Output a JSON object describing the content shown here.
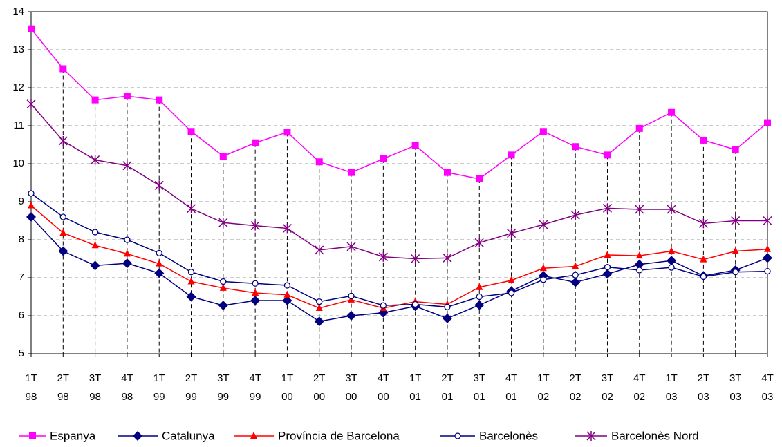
{
  "chart_data": {
    "type": "line",
    "categories": [
      [
        "1T",
        "98"
      ],
      [
        "2T",
        "98"
      ],
      [
        "3T",
        "98"
      ],
      [
        "4T",
        "98"
      ],
      [
        "1T",
        "99"
      ],
      [
        "2T",
        "99"
      ],
      [
        "3T",
        "99"
      ],
      [
        "4T",
        "99"
      ],
      [
        "1T",
        "00"
      ],
      [
        "2T",
        "00"
      ],
      [
        "3T",
        "00"
      ],
      [
        "4T",
        "00"
      ],
      [
        "1T",
        "01"
      ],
      [
        "2T",
        "01"
      ],
      [
        "3T",
        "01"
      ],
      [
        "4T",
        "01"
      ],
      [
        "1T",
        "02"
      ],
      [
        "2T",
        "02"
      ],
      [
        "3T",
        "02"
      ],
      [
        "4T",
        "02"
      ],
      [
        "1T",
        "03"
      ],
      [
        "2T",
        "03"
      ],
      [
        "3T",
        "03"
      ],
      [
        "4T",
        "03"
      ]
    ],
    "ylim": [
      5,
      14
    ],
    "yticks": [
      5,
      6,
      7,
      8,
      9,
      10,
      11,
      12,
      13,
      14
    ],
    "grid": true,
    "legend": "bottom",
    "series": [
      {
        "name": "Espanya",
        "color": "#ff00ff",
        "marker": "square",
        "values": [
          13.55,
          12.5,
          11.68,
          11.78,
          11.68,
          10.85,
          10.2,
          10.55,
          10.83,
          10.05,
          9.77,
          10.13,
          10.48,
          9.77,
          9.6,
          10.23,
          10.85,
          10.45,
          10.23,
          10.93,
          11.35,
          10.62,
          10.37,
          11.08
        ]
      },
      {
        "name": "Catalunya",
        "color": "#000080",
        "marker": "diamond",
        "values": [
          8.6,
          7.7,
          7.32,
          7.38,
          7.12,
          6.5,
          6.27,
          6.4,
          6.4,
          5.85,
          6.0,
          6.08,
          6.25,
          5.93,
          6.28,
          6.65,
          7.05,
          6.88,
          7.1,
          7.35,
          7.45,
          7.05,
          7.2,
          7.52
        ]
      },
      {
        "name": "Província de Barcelona",
        "color": "#ff0000",
        "marker": "triangle",
        "values": [
          8.9,
          8.18,
          7.85,
          7.63,
          7.37,
          6.9,
          6.73,
          6.6,
          6.55,
          6.2,
          6.42,
          6.2,
          6.37,
          6.3,
          6.75,
          6.93,
          7.25,
          7.3,
          7.6,
          7.58,
          7.7,
          7.48,
          7.7,
          7.75
        ]
      },
      {
        "name": "Barcelonès",
        "color": "#000080",
        "marker": "circle",
        "values": [
          9.22,
          8.6,
          8.2,
          8.0,
          7.65,
          7.15,
          6.9,
          6.85,
          6.8,
          6.37,
          6.52,
          6.27,
          6.3,
          6.23,
          6.5,
          6.6,
          6.95,
          7.07,
          7.28,
          7.2,
          7.27,
          7.03,
          7.15,
          7.17
        ]
      },
      {
        "name": "Barcelonès Nord",
        "color": "#800080",
        "marker": "star",
        "values": [
          11.57,
          10.6,
          10.1,
          9.95,
          9.43,
          8.82,
          8.45,
          8.37,
          8.3,
          7.73,
          7.82,
          7.55,
          7.5,
          7.52,
          7.92,
          8.17,
          8.4,
          8.65,
          8.83,
          8.8,
          8.8,
          8.43,
          8.5,
          8.5
        ]
      }
    ]
  }
}
